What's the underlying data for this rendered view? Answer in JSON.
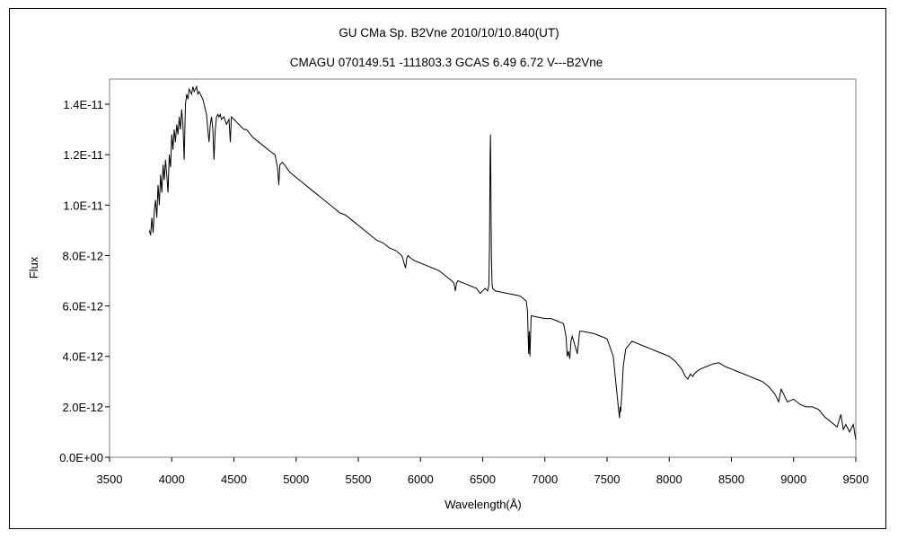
{
  "chart_data": {
    "type": "line",
    "title": "GU CMa    Sp. B2Vne    2010/10/10.840(UT)",
    "subtitle": "CMAGU 070149.51 -111803.3 GCAS 6.49 6.72 V---B2Vne",
    "xlabel": "Wavelength(Å)",
    "ylabel": "Flux",
    "xlim": [
      3500,
      9500
    ],
    "ylim": [
      0,
      1.5e-11
    ],
    "x_ticks": [
      3500,
      4000,
      4500,
      5000,
      5500,
      6000,
      6500,
      7000,
      7500,
      8000,
      8500,
      9000,
      9500
    ],
    "x_tick_labels": [
      "3500",
      "4000",
      "4500",
      "5000",
      "5500",
      "6000",
      "6500",
      "7000",
      "7500",
      "8000",
      "8500",
      "9000",
      "9500"
    ],
    "y_ticks": [
      0,
      2e-12,
      4e-12,
      6e-12,
      8e-12,
      1e-11,
      1.2e-11,
      1.4e-11
    ],
    "y_tick_labels": [
      "0.0E+00",
      "2.0E-12",
      "4.0E-12",
      "6.0E-12",
      "8.0E-12",
      "1.0E-11",
      "1.2E-11",
      "1.4E-11"
    ],
    "grid": false,
    "series": [
      {
        "color": "#000000",
        "x": [
          3820,
          3830,
          3840,
          3850,
          3860,
          3870,
          3880,
          3890,
          3900,
          3910,
          3920,
          3930,
          3940,
          3950,
          3960,
          3970,
          3980,
          3990,
          4000,
          4010,
          4020,
          4030,
          4040,
          4050,
          4060,
          4070,
          4080,
          4090,
          4100,
          4110,
          4120,
          4130,
          4140,
          4150,
          4160,
          4170,
          4180,
          4190,
          4200,
          4210,
          4220,
          4230,
          4240,
          4250,
          4260,
          4270,
          4280,
          4290,
          4300,
          4310,
          4320,
          4330,
          4340,
          4350,
          4360,
          4370,
          4380,
          4390,
          4400,
          4420,
          4440,
          4460,
          4471,
          4480,
          4500,
          4520,
          4540,
          4560,
          4580,
          4600,
          4650,
          4700,
          4750,
          4800,
          4830,
          4850,
          4861,
          4870,
          4890,
          4920,
          4950,
          5000,
          5050,
          5100,
          5150,
          5200,
          5250,
          5300,
          5350,
          5400,
          5450,
          5500,
          5550,
          5600,
          5650,
          5700,
          5750,
          5800,
          5850,
          5880,
          5890,
          5900,
          5920,
          5950,
          6000,
          6050,
          6100,
          6150,
          6200,
          6250,
          6270,
          6280,
          6290,
          6300,
          6350,
          6400,
          6450,
          6480,
          6500,
          6520,
          6540,
          6550,
          6555,
          6560,
          6563,
          6566,
          6570,
          6575,
          6580,
          6600,
          6650,
          6700,
          6750,
          6800,
          6850,
          6860,
          6870,
          6875,
          6880,
          6890,
          6900,
          6950,
          7000,
          7050,
          7100,
          7150,
          7170,
          7180,
          7190,
          7200,
          7210,
          7220,
          7250,
          7260,
          7270,
          7280,
          7300,
          7400,
          7500,
          7550,
          7580,
          7590,
          7600,
          7605,
          7610,
          7620,
          7630,
          7650,
          7700,
          7750,
          7800,
          7850,
          7900,
          7950,
          8000,
          8050,
          8100,
          8130,
          8150,
          8170,
          8190,
          8200,
          8220,
          8250,
          8300,
          8350,
          8400,
          8450,
          8500,
          8550,
          8600,
          8650,
          8700,
          8750,
          8800,
          8850,
          8880,
          8900,
          8950,
          9000,
          9050,
          9100,
          9150,
          9200,
          9250,
          9300,
          9350,
          9380,
          9400,
          9420,
          9450,
          9480,
          9500
        ],
        "y": [
          9e-12,
          8.8e-12,
          9.5e-12,
          8.9e-12,
          9.8e-12,
          1.02e-11,
          9.5e-12,
          1.08e-11,
          1e-11,
          1.12e-11,
          1.05e-11,
          1.16e-11,
          1.1e-11,
          1.18e-11,
          1.12e-11,
          1.05e-11,
          1.2e-11,
          1.15e-11,
          1.28e-11,
          1.22e-11,
          1.3e-11,
          1.25e-11,
          1.32e-11,
          1.28e-11,
          1.35e-11,
          1.3e-11,
          1.38e-11,
          1.32e-11,
          1.18e-11,
          1.4e-11,
          1.44e-11,
          1.42e-11,
          1.46e-11,
          1.45e-11,
          1.44e-11,
          1.47e-11,
          1.45e-11,
          1.46e-11,
          1.47e-11,
          1.44e-11,
          1.45e-11,
          1.44e-11,
          1.43e-11,
          1.42e-11,
          1.4e-11,
          1.38e-11,
          1.36e-11,
          1.3e-11,
          1.25e-11,
          1.32e-11,
          1.35e-11,
          1.3e-11,
          1.18e-11,
          1.3e-11,
          1.35e-11,
          1.36e-11,
          1.35e-11,
          1.36e-11,
          1.34e-11,
          1.35e-11,
          1.32e-11,
          1.34e-11,
          1.25e-11,
          1.35e-11,
          1.34e-11,
          1.33e-11,
          1.32e-11,
          1.31e-11,
          1.3e-11,
          1.3e-11,
          1.27e-11,
          1.25e-11,
          1.23e-11,
          1.21e-11,
          1.2e-11,
          1.15e-11,
          1.08e-11,
          1.16e-11,
          1.17e-11,
          1.15e-11,
          1.13e-11,
          1.11e-11,
          1.09e-11,
          1.07e-11,
          1.05e-11,
          1.03e-11,
          1.01e-11,
          9.9e-12,
          9.7e-12,
          9.6e-12,
          9.4e-12,
          9.2e-12,
          9e-12,
          8.8e-12,
          8.6e-12,
          8.5e-12,
          8.3e-12,
          8.2e-12,
          8e-12,
          7.5e-12,
          7.9e-12,
          8e-12,
          7.9e-12,
          7.8e-12,
          7.7e-12,
          7.6e-12,
          7.5e-12,
          7.4e-12,
          7.2e-12,
          7e-12,
          6.9e-12,
          6.6e-12,
          6.9e-12,
          7e-12,
          6.9e-12,
          6.8e-12,
          6.7e-12,
          6.5e-12,
          6.6e-12,
          6.7e-12,
          6.6e-12,
          6.8e-12,
          8.5e-12,
          1.2e-11,
          1.28e-11,
          1.1e-11,
          8e-12,
          6.9e-12,
          6.7e-12,
          6.6e-12,
          6.55e-12,
          6.5e-12,
          6.45e-12,
          6.4e-12,
          6.2e-12,
          5.8e-12,
          4.1e-12,
          5e-12,
          4e-12,
          5.6e-12,
          5.6e-12,
          5.55e-12,
          5.5e-12,
          5.5e-12,
          5.4e-12,
          5.3e-12,
          4.8e-12,
          4e-12,
          4.2e-12,
          3.9e-12,
          4.6e-12,
          4.8e-12,
          4.3e-12,
          4.1e-12,
          4.5e-12,
          5e-12,
          5e-12,
          4.9e-12,
          4.7e-12,
          4e-12,
          2.5e-12,
          2e-12,
          1.55e-12,
          2e-12,
          1.8e-12,
          2.6e-12,
          3.6e-12,
          4.3e-12,
          4.6e-12,
          4.5e-12,
          4.4e-12,
          4.3e-12,
          4.2e-12,
          4.1e-12,
          4e-12,
          3.8e-12,
          3.5e-12,
          3.2e-12,
          3.1e-12,
          3.3e-12,
          3.2e-12,
          3.3e-12,
          3.4e-12,
          3.5e-12,
          3.6e-12,
          3.7e-12,
          3.75e-12,
          3.6e-12,
          3.5e-12,
          3.4e-12,
          3.3e-12,
          3.2e-12,
          3.1e-12,
          3e-12,
          2.8e-12,
          2.5e-12,
          2.2e-12,
          2.7e-12,
          2.2e-12,
          2.3e-12,
          2.1e-12,
          2e-12,
          2e-12,
          1.9e-12,
          1.6e-12,
          1.4e-12,
          1.2e-12,
          1.7e-12,
          1.1e-12,
          1.3e-12,
          1e-12,
          1.3e-12,
          7e-13
        ]
      }
    ]
  }
}
